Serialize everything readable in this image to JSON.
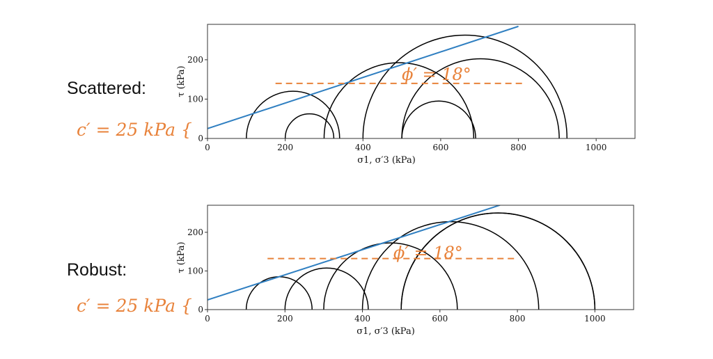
{
  "labels": {
    "scattered": "Scattered:",
    "robust": "Robust:",
    "cohesion_scattered": "c′ = 25 kPa {",
    "cohesion_robust": "c′ = 25 kPa {"
  },
  "colors": {
    "circle": "#000000",
    "envelope": "#2f7fc1",
    "phi_line": "#e8823a",
    "phi_text": "#e8823a",
    "axes": "#333333"
  },
  "chart_data": [
    {
      "type": "line",
      "title": "",
      "xlabel": "σ1, σ′3 (kPa)",
      "ylabel": "τ (kPa)",
      "xlim": [
        0,
        1100
      ],
      "ylim": [
        0,
        290
      ],
      "xticks": [
        "0",
        "200",
        "400",
        "600",
        "800",
        "1000"
      ],
      "yticks": [
        "0",
        "100",
        "200"
      ],
      "xtick_values": [
        0,
        200,
        400,
        600,
        800,
        1000
      ],
      "ytick_values": [
        0,
        100,
        200
      ],
      "circles": [
        {
          "sigma3": 100,
          "sigma1": 340
        },
        {
          "sigma3": 200,
          "sigma1": 325
        },
        {
          "sigma3": 300,
          "sigma1": 685
        },
        {
          "sigma3": 400,
          "sigma1": 925
        },
        {
          "sigma3": 500,
          "sigma1": 905
        },
        {
          "sigma3": 500,
          "sigma1": 690
        }
      ],
      "envelope": {
        "c": 25,
        "x_start": 0,
        "x_end": 800
      },
      "phi_line": {
        "y": 140,
        "x_start": 175,
        "x_end": 815
      },
      "phi_text": "ϕ′ = 18°",
      "phi_text_pos": {
        "x": 500,
        "y": 163
      }
    },
    {
      "type": "line",
      "title": "",
      "xlabel": "σ1, σ′3 (kPa)",
      "ylabel": "τ (kPa)",
      "xlim": [
        0,
        1100
      ],
      "ylim": [
        0,
        270
      ],
      "xticks": [
        "0",
        "200",
        "400",
        "600",
        "800",
        "1000"
      ],
      "yticks": [
        "0",
        "100",
        "200"
      ],
      "xtick_values": [
        0,
        200,
        400,
        600,
        800,
        1000
      ],
      "ytick_values": [
        0,
        100,
        200
      ],
      "circles": [
        {
          "sigma3": 100,
          "sigma1": 270
        },
        {
          "sigma3": 200,
          "sigma1": 415
        },
        {
          "sigma3": 300,
          "sigma1": 645
        },
        {
          "sigma3": 400,
          "sigma1": 855
        },
        {
          "sigma3": 500,
          "sigma1": 1000
        },
        {
          "sigma3": 500,
          "sigma1": 1000
        }
      ],
      "envelope": {
        "c": 25,
        "x_start": 0,
        "x_end": 755
      },
      "phi_line": {
        "y": 132,
        "x_start": 155,
        "x_end": 800
      },
      "phi_text": "ϕ′ = 18°",
      "phi_text_pos": {
        "x": 480,
        "y": 147
      }
    }
  ]
}
